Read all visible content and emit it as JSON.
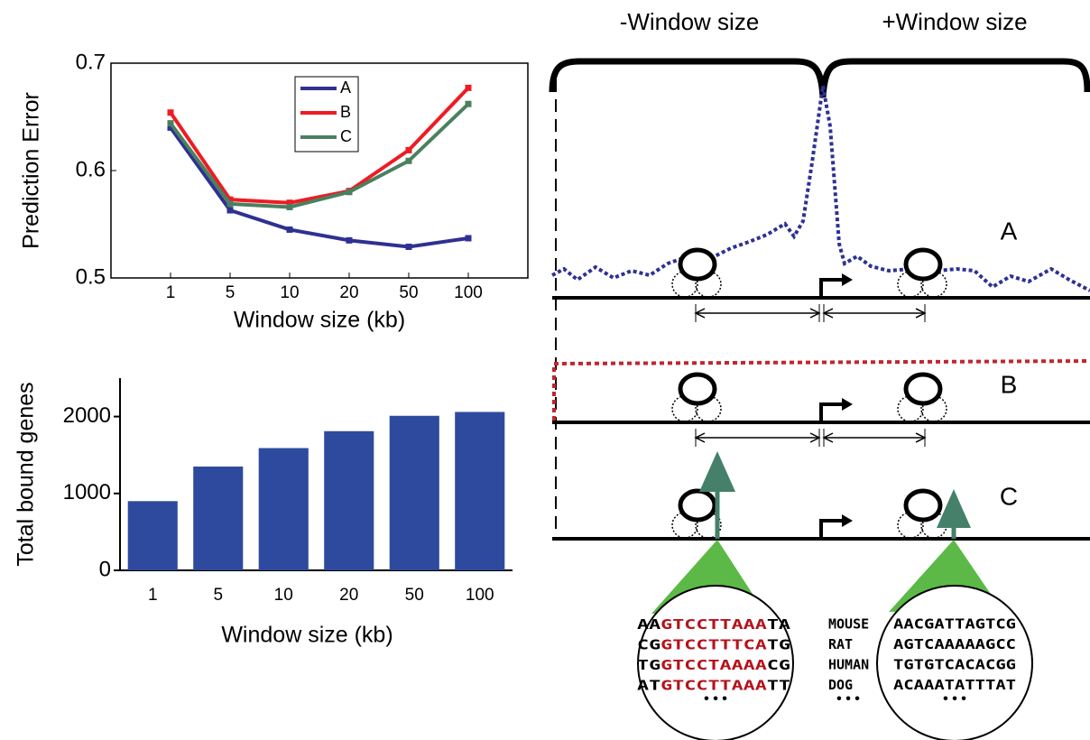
{
  "chart_data": [
    {
      "type": "line",
      "ylabel": "Prediction Error",
      "xlabel": "Window size (kb)",
      "categories": [
        "1",
        "5",
        "10",
        "20",
        "50",
        "100"
      ],
      "ylim": [
        0.5,
        0.7
      ],
      "yticks": [
        0.5,
        0.6,
        0.7
      ],
      "legend": "upper center",
      "series": [
        {
          "name": "A",
          "color": "#2e3192",
          "values": [
            0.64,
            0.563,
            0.545,
            0.535,
            0.529,
            0.537
          ]
        },
        {
          "name": "B",
          "color": "#ed1c24",
          "values": [
            0.654,
            0.573,
            0.57,
            0.581,
            0.619,
            0.677
          ]
        },
        {
          "name": "C",
          "color": "#4a8060",
          "values": [
            0.644,
            0.569,
            0.566,
            0.58,
            0.609,
            0.662
          ]
        }
      ]
    },
    {
      "type": "bar",
      "ylabel": "Total bound genes",
      "xlabel": "Window size (kb)",
      "categories": [
        "1",
        "5",
        "10",
        "20",
        "50",
        "100"
      ],
      "values": [
        900,
        1350,
        1590,
        1810,
        2010,
        2060
      ],
      "color": "#2e4a9e",
      "ylim": [
        0,
        2500
      ],
      "yticks": [
        0,
        1000,
        2000
      ]
    }
  ],
  "diagram": {
    "brace_labels": [
      "-Window size",
      "+Window size"
    ],
    "tracks": [
      "A",
      "B",
      "C"
    ],
    "left_alignment": {
      "rows": [
        {
          "flank_left": "AA",
          "motif": "GTCCTTAAA",
          "flank_right": "TA"
        },
        {
          "flank_left": "CG",
          "motif": "GTCCTTTCA",
          "flank_right": "TG"
        },
        {
          "flank_left": "TG",
          "motif": "GTCCTAAAA",
          "flank_right": "CG"
        },
        {
          "flank_left": "AT",
          "motif": "GTCCTTAAA",
          "flank_right": "TT"
        }
      ],
      "more": "• • •"
    },
    "species": {
      "names": [
        "MOUSE",
        "RAT",
        "HUMAN",
        "DOG"
      ],
      "more": "• • •"
    },
    "right_alignment": {
      "rows": [
        "AACGATTAGTCG",
        "AGTCAAAAAGCC",
        "TGTGTCACACGG",
        "ACAAATATTTAT"
      ],
      "more": "• • •"
    }
  }
}
